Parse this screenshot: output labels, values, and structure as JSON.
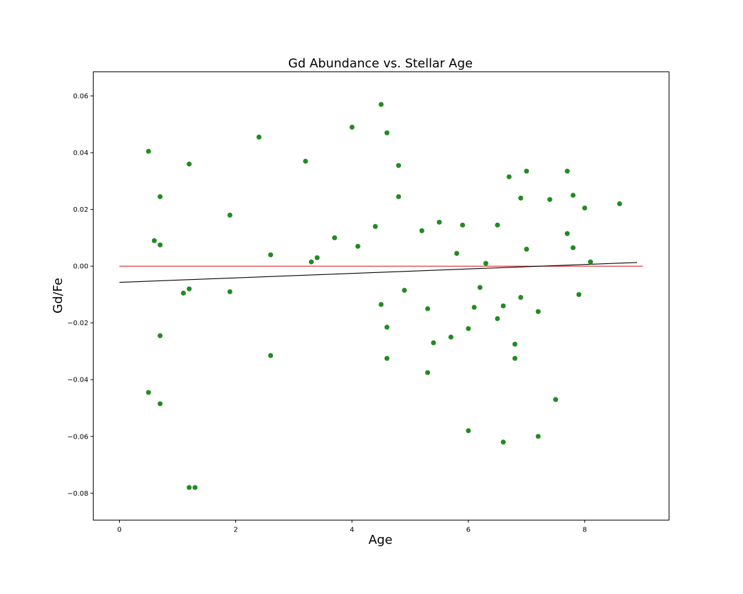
{
  "chart_data": {
    "type": "scatter",
    "title": "Gd Abundance vs. Stellar Age",
    "xlabel": "Age",
    "ylabel": "Gd/Fe",
    "xlim": [
      -0.45,
      9.45
    ],
    "ylim": [
      -0.0895,
      0.0685
    ],
    "xticks": [
      {
        "value": 0,
        "label": "0"
      },
      {
        "value": 2,
        "label": "2"
      },
      {
        "value": 4,
        "label": "4"
      },
      {
        "value": 6,
        "label": "6"
      },
      {
        "value": 8,
        "label": "8"
      }
    ],
    "yticks": [
      {
        "value": -0.08,
        "label": "−0.08"
      },
      {
        "value": -0.06,
        "label": "−0.06"
      },
      {
        "value": -0.04,
        "label": "−0.04"
      },
      {
        "value": -0.02,
        "label": "−0.02"
      },
      {
        "value": 0.0,
        "label": "0.00"
      },
      {
        "value": 0.02,
        "label": "0.02"
      },
      {
        "value": 0.04,
        "label": "0.04"
      },
      {
        "value": 0.06,
        "label": "0.06"
      }
    ],
    "grid": false,
    "colors": {
      "points": "#228b22",
      "zero_line": "#d62728",
      "fit_line": "#000000"
    },
    "points": [
      {
        "x": 0.5,
        "y": 0.0405
      },
      {
        "x": 0.6,
        "y": 0.009
      },
      {
        "x": 0.7,
        "y": 0.0245
      },
      {
        "x": 0.7,
        "y": 0.0075
      },
      {
        "x": 0.7,
        "y": -0.0245
      },
      {
        "x": 0.5,
        "y": -0.0445
      },
      {
        "x": 0.7,
        "y": -0.0485
      },
      {
        "x": 1.1,
        "y": -0.0095
      },
      {
        "x": 1.2,
        "y": 0.036
      },
      {
        "x": 1.2,
        "y": -0.008
      },
      {
        "x": 1.2,
        "y": -0.078
      },
      {
        "x": 1.3,
        "y": -0.078
      },
      {
        "x": 1.9,
        "y": 0.018
      },
      {
        "x": 1.9,
        "y": -0.009
      },
      {
        "x": 2.4,
        "y": 0.0455
      },
      {
        "x": 2.6,
        "y": 0.004
      },
      {
        "x": 2.6,
        "y": -0.0315
      },
      {
        "x": 3.2,
        "y": 0.037
      },
      {
        "x": 3.3,
        "y": 0.0015
      },
      {
        "x": 3.4,
        "y": 0.003
      },
      {
        "x": 3.7,
        "y": 0.01
      },
      {
        "x": 4.0,
        "y": 0.049
      },
      {
        "x": 4.1,
        "y": 0.007
      },
      {
        "x": 4.4,
        "y": 0.014
      },
      {
        "x": 4.5,
        "y": 0.057
      },
      {
        "x": 4.5,
        "y": -0.0135
      },
      {
        "x": 4.6,
        "y": 0.047
      },
      {
        "x": 4.6,
        "y": -0.0215
      },
      {
        "x": 4.6,
        "y": -0.0325
      },
      {
        "x": 4.8,
        "y": 0.0355
      },
      {
        "x": 4.8,
        "y": 0.0245
      },
      {
        "x": 4.9,
        "y": -0.0085
      },
      {
        "x": 5.2,
        "y": 0.0125
      },
      {
        "x": 5.3,
        "y": -0.015
      },
      {
        "x": 5.3,
        "y": -0.0375
      },
      {
        "x": 5.4,
        "y": -0.027
      },
      {
        "x": 5.5,
        "y": 0.0155
      },
      {
        "x": 5.7,
        "y": -0.025
      },
      {
        "x": 5.8,
        "y": 0.0045
      },
      {
        "x": 5.9,
        "y": 0.0145
      },
      {
        "x": 6.0,
        "y": -0.022
      },
      {
        "x": 6.0,
        "y": -0.058
      },
      {
        "x": 6.1,
        "y": -0.0145
      },
      {
        "x": 6.2,
        "y": -0.0075
      },
      {
        "x": 6.3,
        "y": 0.001
      },
      {
        "x": 6.5,
        "y": 0.0145
      },
      {
        "x": 6.5,
        "y": -0.0185
      },
      {
        "x": 6.6,
        "y": -0.014
      },
      {
        "x": 6.6,
        "y": -0.062
      },
      {
        "x": 6.7,
        "y": 0.0315
      },
      {
        "x": 6.8,
        "y": -0.0275
      },
      {
        "x": 6.8,
        "y": -0.0325
      },
      {
        "x": 6.9,
        "y": 0.024
      },
      {
        "x": 6.9,
        "y": -0.011
      },
      {
        "x": 7.0,
        "y": 0.0335
      },
      {
        "x": 7.0,
        "y": 0.006
      },
      {
        "x": 7.2,
        "y": -0.016
      },
      {
        "x": 7.2,
        "y": -0.06
      },
      {
        "x": 7.4,
        "y": 0.0235
      },
      {
        "x": 7.5,
        "y": -0.047
      },
      {
        "x": 7.7,
        "y": 0.0335
      },
      {
        "x": 7.7,
        "y": 0.0115
      },
      {
        "x": 7.8,
        "y": 0.025
      },
      {
        "x": 7.8,
        "y": 0.0065
      },
      {
        "x": 7.9,
        "y": -0.01
      },
      {
        "x": 8.0,
        "y": 0.0205
      },
      {
        "x": 8.1,
        "y": 0.0015
      },
      {
        "x": 8.6,
        "y": 0.022
      }
    ],
    "lines": [
      {
        "role": "zero-line",
        "x": [
          0,
          9.0
        ],
        "y": [
          0.0,
          0.0
        ]
      },
      {
        "role": "fit-line",
        "x": [
          0,
          8.9
        ],
        "y": [
          -0.0057,
          0.0013
        ]
      }
    ]
  }
}
